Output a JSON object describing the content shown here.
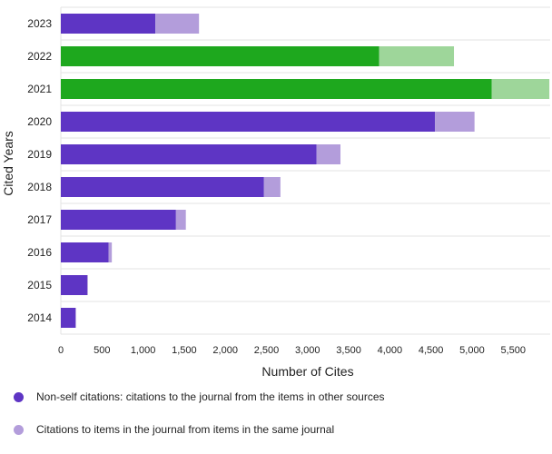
{
  "chart_data": {
    "type": "bar",
    "orientation": "horizontal",
    "stacked": true,
    "xlabel": "Number of Cites",
    "ylabel": "Cited Years",
    "xlim": [
      0,
      5950
    ],
    "xticks": [
      0,
      500,
      1000,
      1500,
      2000,
      2500,
      3000,
      3500,
      4000,
      4500,
      5000,
      5500
    ],
    "xtick_labels": [
      "0",
      "500",
      "1,000",
      "1,500",
      "2,000",
      "2,500",
      "3,000",
      "3,500",
      "4,000",
      "4,500",
      "5,000",
      "5,500"
    ],
    "categories": [
      "2023",
      "2022",
      "2021",
      "2020",
      "2019",
      "2018",
      "2017",
      "2016",
      "2015",
      "2014"
    ],
    "series": [
      {
        "name": "Non-self citations: citations to the journal from the items in other sources",
        "values": [
          1150,
          3870,
          5240,
          4550,
          3110,
          2470,
          1400,
          580,
          320,
          180
        ],
        "color": "#5e35c4"
      },
      {
        "name": "Citations to items in the journal from items in the same journal",
        "values": [
          530,
          910,
          700,
          480,
          290,
          200,
          120,
          40,
          10,
          5
        ],
        "color": "#b39ddb"
      }
    ],
    "highlight_categories": [
      "2022",
      "2021"
    ],
    "highlight_colors": [
      "#1ea81e",
      "#9ed69a"
    ],
    "grid": "horizontal",
    "legend_position": "bottom-left"
  }
}
